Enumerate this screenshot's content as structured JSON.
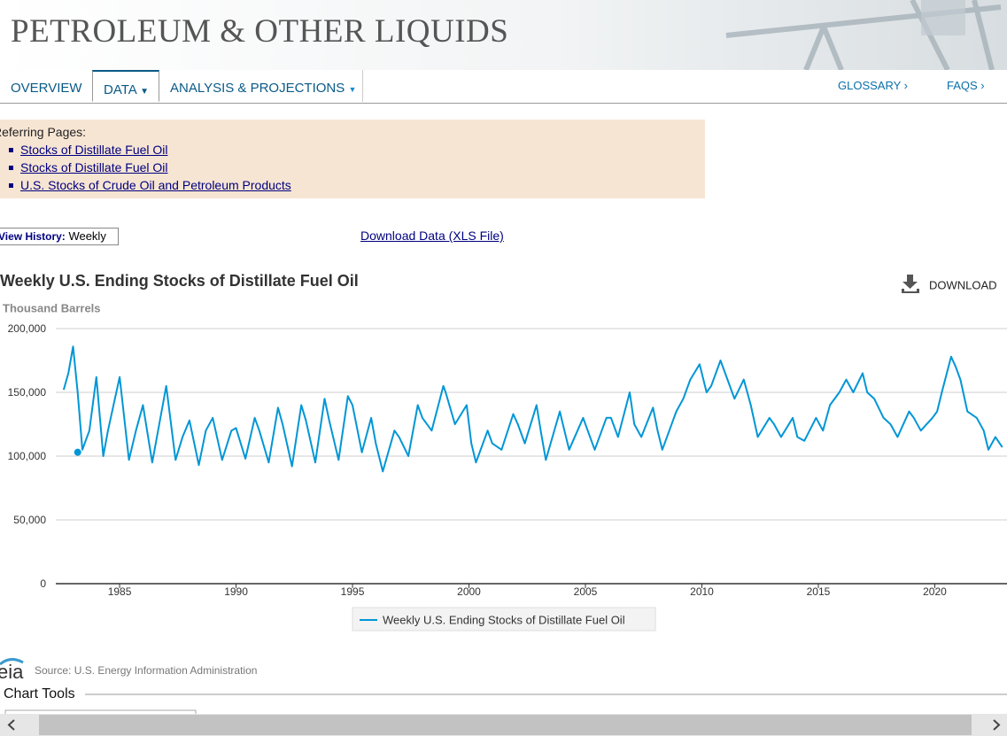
{
  "header": {
    "title": "PETROLEUM & OTHER LIQUIDS"
  },
  "nav": {
    "tabs": [
      "OVERVIEW",
      "DATA",
      "ANALYSIS & PROJECTIONS"
    ],
    "links": [
      "GLOSSARY ›",
      "FAQS ›"
    ]
  },
  "referring": {
    "heading": "Referring Pages:",
    "links": [
      "Stocks of Distillate Fuel Oil",
      "Stocks of Distillate Fuel Oil",
      "U.S. Stocks of Crude Oil and Petroleum Products"
    ]
  },
  "history": {
    "label": "View History:",
    "value": "Weekly"
  },
  "download_data": "Download Data (XLS File)",
  "chart_data": {
    "type": "line",
    "title": "Weekly U.S. Ending Stocks of Distillate Fuel Oil",
    "y_label": "Thousand Barrels",
    "download": "DOWNLOAD",
    "x": [
      1982.6,
      1982.8,
      1983.0,
      1983.2,
      1983.4,
      1983.7,
      1984.0,
      1984.3,
      1984.5,
      1985.0,
      1985.4,
      1985.7,
      1986.0,
      1986.4,
      1986.7,
      1987.0,
      1987.4,
      1987.7,
      1988.0,
      1988.4,
      1988.7,
      1989.0,
      1989.4,
      1989.8,
      1990.0,
      1990.4,
      1990.8,
      1991.0,
      1991.4,
      1991.8,
      1992.0,
      1992.4,
      1992.8,
      1993.0,
      1993.4,
      1993.8,
      1994.0,
      1994.4,
      1994.8,
      1995.0,
      1995.4,
      1995.8,
      1996.0,
      1996.3,
      1996.8,
      1997.0,
      1997.4,
      1997.8,
      1998.0,
      1998.4,
      1998.9,
      1999.0,
      1999.4,
      1999.9,
      2000.1,
      2000.3,
      2000.8,
      2001.0,
      2001.4,
      2001.9,
      2002.1,
      2002.4,
      2002.9,
      2003.1,
      2003.3,
      2003.9,
      2004.1,
      2004.3,
      2004.9,
      2005.1,
      2005.4,
      2005.9,
      2006.1,
      2006.4,
      2006.9,
      2007.1,
      2007.4,
      2007.9,
      2008.1,
      2008.3,
      2008.9,
      2009.2,
      2009.5,
      2009.9,
      2010.2,
      2010.4,
      2010.8,
      2011.0,
      2011.4,
      2011.8,
      2012.1,
      2012.4,
      2012.9,
      2013.1,
      2013.4,
      2013.9,
      2014.1,
      2014.4,
      2014.9,
      2015.2,
      2015.5,
      2015.9,
      2016.2,
      2016.5,
      2016.9,
      2017.1,
      2017.4,
      2017.8,
      2018.1,
      2018.4,
      2018.9,
      2019.1,
      2019.4,
      2019.9,
      2020.1,
      2020.3,
      2020.7,
      2020.9,
      2021.1,
      2021.4,
      2021.8,
      2022.1,
      2022.3,
      2022.6,
      2022.9
    ],
    "series": [
      {
        "name": "Weekly U.S. Ending Stocks of Distillate Fuel Oil",
        "color": "#0096d6",
        "values": [
          152000,
          165000,
          186000,
          150000,
          105000,
          120000,
          162000,
          100000,
          120000,
          162000,
          97000,
          120000,
          140000,
          95000,
          125000,
          155000,
          97000,
          115000,
          128000,
          93000,
          120000,
          130000,
          97000,
          120000,
          122000,
          98000,
          130000,
          120000,
          95000,
          138000,
          125000,
          92000,
          140000,
          128000,
          95000,
          145000,
          128000,
          97000,
          147000,
          140000,
          103000,
          130000,
          110000,
          88000,
          120000,
          115000,
          100000,
          140000,
          130000,
          120000,
          155000,
          150000,
          125000,
          140000,
          110000,
          95000,
          120000,
          110000,
          105000,
          133000,
          125000,
          110000,
          140000,
          118000,
          97000,
          135000,
          120000,
          105000,
          130000,
          120000,
          105000,
          130000,
          130000,
          115000,
          150000,
          125000,
          115000,
          138000,
          120000,
          105000,
          135000,
          145000,
          160000,
          172000,
          150000,
          155000,
          175000,
          165000,
          145000,
          160000,
          140000,
          115000,
          130000,
          125000,
          115000,
          130000,
          115000,
          112000,
          130000,
          120000,
          140000,
          150000,
          160000,
          150000,
          165000,
          150000,
          145000,
          130000,
          125000,
          115000,
          135000,
          130000,
          120000,
          130000,
          135000,
          150000,
          178000,
          170000,
          160000,
          135000,
          130000,
          120000,
          105000,
          115000,
          107000
        ]
      }
    ],
    "marker": {
      "x": 1983.2,
      "y": 103000
    },
    "xlim": [
      1982.26,
      2023.1
    ],
    "ylim": [
      0,
      200000
    ],
    "xticks": [
      1985,
      1990,
      1995,
      2000,
      2005,
      2010,
      2015,
      2020
    ],
    "yticks": [
      0,
      {
        "value": 50000,
        "label": "50,000"
      },
      {
        "value": 100000,
        "label": "100,000"
      },
      {
        "value": 150000,
        "label": "150,000"
      },
      {
        "value": 200000,
        "label": "200,000"
      }
    ],
    "grid": true
  },
  "source": {
    "logo": "eia",
    "text": "Source: U.S. Energy Information Administration"
  },
  "tools": "Chart Tools"
}
